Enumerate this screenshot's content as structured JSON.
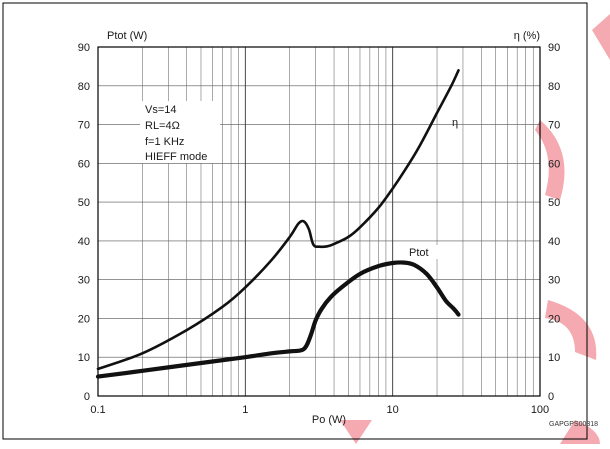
{
  "chart_data": {
    "type": "line",
    "x_scale": "log",
    "xlim": [
      0.1,
      100
    ],
    "ylim": [
      0,
      90
    ],
    "y2lim": [
      0,
      90
    ],
    "grid": true,
    "xlabel": "Po (W)",
    "ylabel_left": "Ptot (W)",
    "ylabel_right": "η (%)",
    "x_tick_labels": [
      "0.1",
      "1",
      "10",
      "100"
    ],
    "x_tick_values": [
      0.1,
      1,
      10,
      100
    ],
    "y_tick_values": [
      0,
      10,
      20,
      30,
      40,
      50,
      60,
      70,
      80,
      90
    ],
    "y_tick_labels": [
      "0",
      "10",
      "20",
      "30",
      "40",
      "50",
      "60",
      "70",
      "80",
      "90"
    ],
    "conditions": [
      "Vs=14",
      "RL=4Ω",
      "f=1 KHz",
      "HIEFF mode"
    ],
    "code_label": "GAPGPS00318",
    "series": [
      {
        "name": "η",
        "axis": "right",
        "color": "#111111",
        "x": [
          0.1,
          0.2,
          0.4,
          0.7,
          1.0,
          1.5,
          2.0,
          2.3,
          2.5,
          2.7,
          2.9,
          3.2,
          3.6,
          4.0,
          5.0,
          6.0,
          8.0,
          10,
          12,
          15,
          20,
          25,
          28
        ],
        "y": [
          7,
          11,
          17,
          23,
          28,
          35,
          41,
          44.5,
          45,
          43,
          39,
          38.5,
          38.6,
          39.2,
          41,
          43.5,
          48.5,
          53.5,
          58,
          64,
          73,
          80,
          84
        ]
      },
      {
        "name": "Ptot",
        "axis": "left",
        "color": "#111111",
        "x": [
          0.1,
          0.2,
          0.5,
          1.0,
          1.5,
          2.0,
          2.4,
          2.6,
          2.8,
          3.0,
          3.3,
          3.8,
          4.5,
          6.0,
          8.0,
          10,
          12,
          14,
          17,
          20,
          23,
          26,
          28
        ],
        "y": [
          5,
          6.5,
          8.5,
          10,
          11,
          11.5,
          11.8,
          13,
          16,
          19.5,
          22.5,
          25.5,
          28,
          31.5,
          33.5,
          34.3,
          34.4,
          33.8,
          31.5,
          28,
          24.5,
          22.5,
          21
        ]
      }
    ]
  },
  "watermark": {
    "color": "#f4aab0"
  }
}
